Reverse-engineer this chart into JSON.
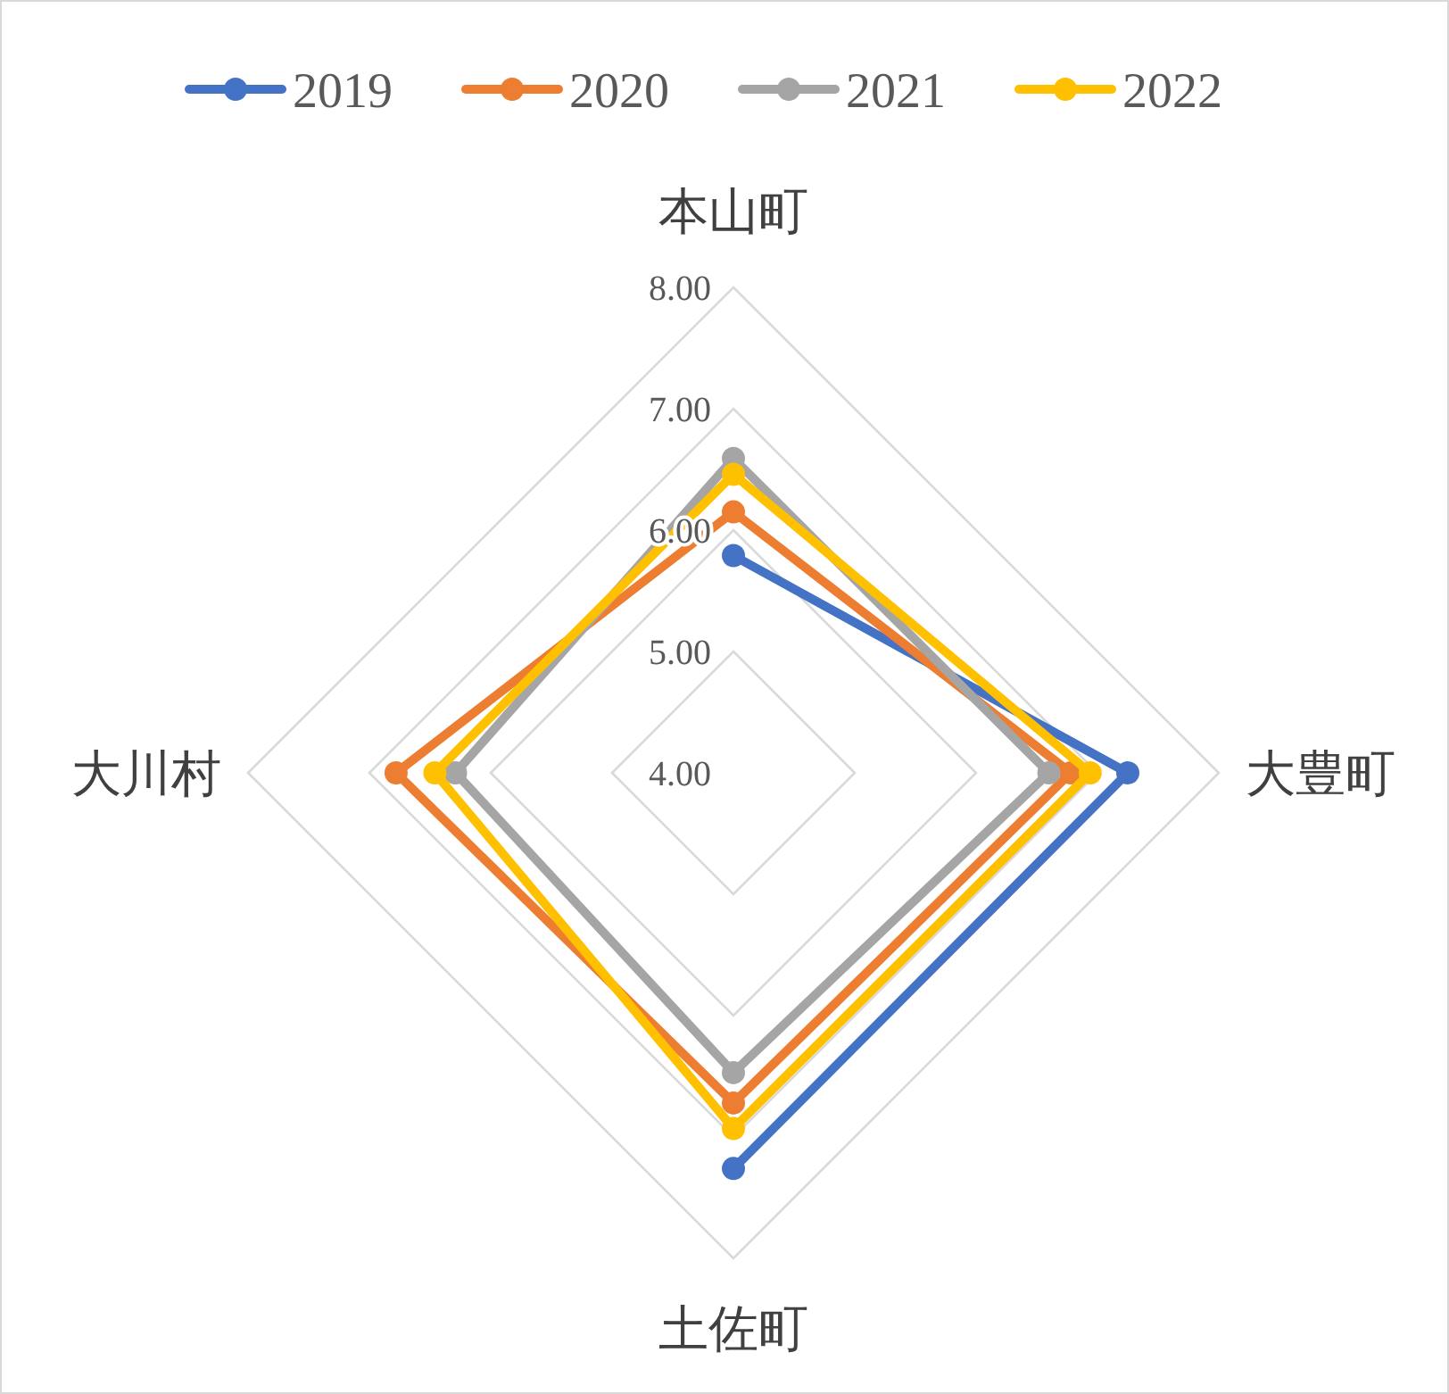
{
  "chart_data": {
    "type": "radar",
    "categories": [
      "本山町",
      "大豊町",
      "土佐町",
      "大川村"
    ],
    "series": [
      {
        "name": "2019",
        "color": "#4472c4",
        "values": [
          5.79,
          7.25,
          7.26,
          null
        ]
      },
      {
        "name": "2020",
        "color": "#ed7d31",
        "values": [
          6.15,
          6.78,
          6.72,
          6.78
        ]
      },
      {
        "name": "2021",
        "color": "#a5a5a5",
        "values": [
          6.59,
          6.6,
          6.47,
          6.29
        ]
      },
      {
        "name": "2022",
        "color": "#ffc000",
        "values": [
          6.46,
          6.94,
          6.93,
          6.46
        ]
      }
    ],
    "ylim": [
      4,
      8
    ],
    "yticks": [
      {
        "value": 4,
        "label": "4.00"
      },
      {
        "value": 5,
        "label": "5.00"
      },
      {
        "value": 6,
        "label": "6.00"
      },
      {
        "value": 7,
        "label": "7.00"
      },
      {
        "value": 8,
        "label": "8.00"
      }
    ],
    "grid": true,
    "legend": "top",
    "marker": "circle",
    "line_style": "solid"
  }
}
